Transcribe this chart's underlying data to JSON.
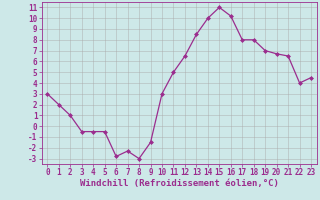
{
  "x": [
    0,
    1,
    2,
    3,
    4,
    5,
    6,
    7,
    8,
    9,
    10,
    11,
    12,
    13,
    14,
    15,
    16,
    17,
    18,
    19,
    20,
    21,
    22,
    23
  ],
  "y": [
    3,
    2,
    1,
    -0.5,
    -0.5,
    -0.5,
    -2.8,
    -2.3,
    -3.0,
    -1.5,
    3.0,
    5.0,
    6.5,
    8.5,
    10.0,
    11.0,
    10.2,
    8.0,
    8.0,
    7.0,
    6.7,
    6.5,
    4.0,
    4.5
  ],
  "line_color": "#9b2d8e",
  "marker_color": "#9b2d8e",
  "bg_color": "#cde8e8",
  "grid_color": "#aaaaaa",
  "xlabel": "Windchill (Refroidissement éolien,°C)",
  "xlim": [
    -0.5,
    23.5
  ],
  "ylim": [
    -3.5,
    11.5
  ],
  "yticks": [
    -3,
    -2,
    -1,
    0,
    1,
    2,
    3,
    4,
    5,
    6,
    7,
    8,
    9,
    10,
    11
  ],
  "xticks": [
    0,
    1,
    2,
    3,
    4,
    5,
    6,
    7,
    8,
    9,
    10,
    11,
    12,
    13,
    14,
    15,
    16,
    17,
    18,
    19,
    20,
    21,
    22,
    23
  ],
  "axis_label_color": "#9b2d8e",
  "tick_label_color": "#9b2d8e",
  "font_size_xlabel": 6.5,
  "font_size_ticks": 5.5
}
